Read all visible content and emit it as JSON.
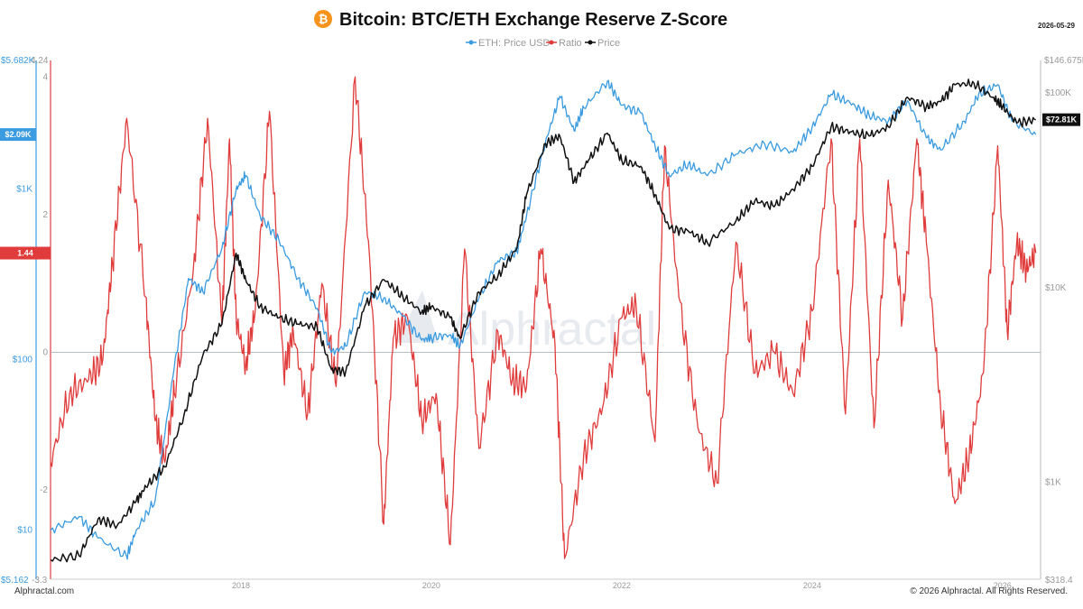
{
  "header": {
    "title": "Bitcoin: BTC/ETH Exchange Reserve Z-Score",
    "date": "2026-05-29",
    "logo_icon": "bitcoin-icon"
  },
  "legend": [
    {
      "label": "ETH: Price USD",
      "color": "#3a9be0"
    },
    {
      "label": "Ratio",
      "color": "#e03c3c"
    },
    {
      "label": "Price",
      "color": "#111111"
    }
  ],
  "watermark": "Alphractal",
  "footer": {
    "left": "Alphractal.com",
    "right": "© 2026 Alphractal. All Rights Reserved."
  },
  "chart_data": {
    "type": "line",
    "title": "Bitcoin: BTC/ETH Exchange Reserve Z-Score",
    "x_ticks": [
      "2018",
      "2020",
      "2022",
      "2024",
      "2026"
    ],
    "x_range": [
      2016.0,
      2026.4
    ],
    "left_eth_axis": {
      "scale": "log",
      "range": [
        5.162,
        5682
      ],
      "ticks": [
        "$10",
        "$100",
        "$1K"
      ],
      "top_label": "$5.682K",
      "bottom_label": "$5.162",
      "current_badge": "$2.09K"
    },
    "left_ratio_axis": {
      "scale": "linear",
      "range": [
        -3.3,
        4.24
      ],
      "ticks": [
        "-2",
        "0",
        "2",
        "4"
      ],
      "top_label": "4.24",
      "bottom_label": "-3.3",
      "current_badge": "1.44"
    },
    "right_price_axis": {
      "scale": "log",
      "range": [
        318.4,
        146675
      ],
      "ticks": [
        "$1K",
        "$10K",
        "$100K"
      ],
      "top_label": "$146.675K",
      "bottom_label": "$318.4",
      "current_badge": "$72.81K"
    },
    "series": [
      {
        "name": "ETH: Price USD",
        "color": "#3a9be0",
        "x": [
          2016.0,
          2016.3,
          2016.5,
          2016.8,
          2016.9,
          2017.1,
          2017.3,
          2017.45,
          2017.6,
          2017.8,
          2017.95,
          2018.05,
          2018.2,
          2018.4,
          2018.6,
          2018.8,
          2018.95,
          2019.1,
          2019.3,
          2019.5,
          2019.7,
          2019.9,
          2020.0,
          2020.2,
          2020.3,
          2020.5,
          2020.7,
          2020.9,
          2021.0,
          2021.2,
          2021.35,
          2021.5,
          2021.6,
          2021.85,
          2022.0,
          2022.2,
          2022.35,
          2022.5,
          2022.7,
          2022.9,
          2023.2,
          2023.5,
          2023.8,
          2024.0,
          2024.2,
          2024.4,
          2024.6,
          2024.8,
          2025.0,
          2025.2,
          2025.35,
          2025.6,
          2025.75,
          2025.95,
          2026.1,
          2026.35
        ],
        "y": [
          10,
          12,
          9,
          7,
          10,
          15,
          90,
          300,
          250,
          450,
          1000,
          1200,
          700,
          500,
          300,
          200,
          110,
          120,
          250,
          230,
          180,
          130,
          135,
          140,
          120,
          230,
          380,
          430,
          700,
          1900,
          3500,
          2200,
          3000,
          4300,
          3100,
          2800,
          1800,
          1200,
          1400,
          1200,
          1600,
          1850,
          1650,
          2300,
          3600,
          3200,
          2700,
          2500,
          3300,
          2000,
          1700,
          2500,
          3600,
          4100,
          2500,
          2090
        ]
      },
      {
        "name": "Ratio",
        "color": "#e03c3c",
        "x": [
          2016.0,
          2016.2,
          2016.4,
          2016.55,
          2016.65,
          2016.8,
          2017.0,
          2017.1,
          2017.2,
          2017.3,
          2017.5,
          2017.65,
          2017.8,
          2017.88,
          2017.95,
          2018.05,
          2018.15,
          2018.3,
          2018.45,
          2018.55,
          2018.7,
          2018.85,
          2019.0,
          2019.2,
          2019.35,
          2019.5,
          2019.6,
          2019.75,
          2019.9,
          2020.05,
          2020.2,
          2020.35,
          2020.5,
          2020.7,
          2020.85,
          2021.0,
          2021.15,
          2021.3,
          2021.4,
          2021.6,
          2021.8,
          2022.0,
          2022.15,
          2022.35,
          2022.45,
          2022.6,
          2022.8,
          2023.0,
          2023.2,
          2023.4,
          2023.6,
          2023.8,
          2024.0,
          2024.2,
          2024.35,
          2024.5,
          2024.65,
          2024.8,
          2024.95,
          2025.1,
          2025.2,
          2025.35,
          2025.5,
          2025.65,
          2025.8,
          2025.95,
          2026.05,
          2026.15,
          2026.25,
          2026.35
        ],
        "y": [
          -1.6,
          -0.6,
          -0.4,
          -0.1,
          1.3,
          3.4,
          0.8,
          -1.0,
          -1.6,
          -0.6,
          1.2,
          3.4,
          0.4,
          3.1,
          0.5,
          -0.2,
          0.6,
          3.5,
          -0.3,
          0.3,
          -0.9,
          1.0,
          -0.5,
          4.0,
          1.4,
          -2.5,
          0.2,
          0.5,
          -1.0,
          -0.6,
          -2.8,
          1.5,
          -1.4,
          0.3,
          -0.4,
          -0.5,
          1.5,
          0.1,
          -3.0,
          -1.5,
          -0.8,
          0.5,
          0.7,
          -1.3,
          3.0,
          0.8,
          -1.1,
          -1.9,
          1.6,
          -0.3,
          0.0,
          -0.6,
          0.6,
          3.1,
          -0.9,
          3.1,
          -1.1,
          2.5,
          0.5,
          3.1,
          1.6,
          -0.8,
          -2.2,
          -1.5,
          -0.3,
          3.0,
          0.3,
          1.6,
          1.2,
          1.44
        ]
      },
      {
        "name": "Price",
        "color": "#111111",
        "x": [
          2016.0,
          2016.3,
          2016.5,
          2016.7,
          2016.9,
          2017.0,
          2017.2,
          2017.4,
          2017.6,
          2017.8,
          2017.95,
          2018.05,
          2018.2,
          2018.4,
          2018.6,
          2018.8,
          2018.95,
          2019.1,
          2019.3,
          2019.5,
          2019.7,
          2019.9,
          2020.0,
          2020.2,
          2020.3,
          2020.5,
          2020.7,
          2020.9,
          2021.0,
          2021.2,
          2021.35,
          2021.5,
          2021.65,
          2021.85,
          2022.0,
          2022.2,
          2022.35,
          2022.5,
          2022.7,
          2022.9,
          2023.2,
          2023.4,
          2023.6,
          2023.8,
          2024.0,
          2024.2,
          2024.4,
          2024.6,
          2024.8,
          2025.0,
          2025.2,
          2025.35,
          2025.5,
          2025.7,
          2025.9,
          2026.0,
          2026.15,
          2026.35
        ],
        "y": [
          400,
          420,
          650,
          600,
          800,
          950,
          1200,
          2200,
          4500,
          6500,
          15000,
          11000,
          8000,
          7000,
          6500,
          6300,
          3800,
          3700,
          8000,
          11000,
          9000,
          7500,
          8000,
          7000,
          5500,
          9500,
          11500,
          16000,
          30000,
          55000,
          60000,
          35000,
          45000,
          62000,
          45000,
          42000,
          30000,
          20000,
          19500,
          17000,
          22000,
          28000,
          26000,
          32000,
          42000,
          67000,
          63000,
          60000,
          67000,
          95000,
          85000,
          90000,
          110000,
          112000,
          95000,
          85000,
          70000,
          72810
        ]
      }
    ]
  }
}
